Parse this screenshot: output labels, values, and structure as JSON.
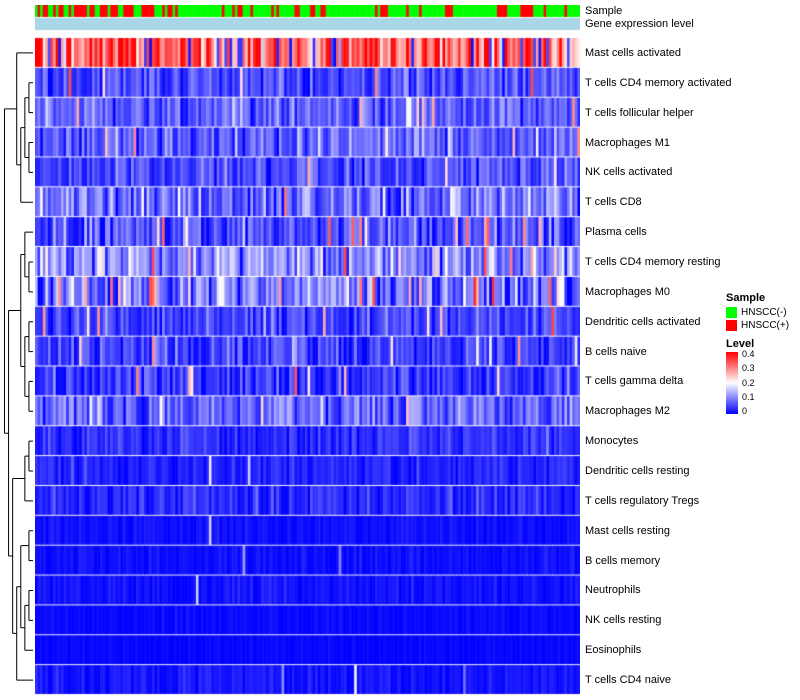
{
  "annotation": {
    "sample_label": "Sample",
    "gene_label": "Gene expression level"
  },
  "legend": {
    "sample_title": "Sample",
    "sample_items": [
      {
        "label": "HNSCC(-)",
        "color": "#00FF00"
      },
      {
        "label": "HNSCC(+)",
        "color": "#FF0000"
      }
    ],
    "level_title": "Level",
    "level_ticks": [
      "0.4",
      "0.3",
      "0.2",
      "0.1",
      "0"
    ]
  },
  "chart_data": {
    "type": "heatmap",
    "title": "",
    "n_samples": 210,
    "value_range": [
      0,
      0.4
    ],
    "seed": 42,
    "colormap": {
      "low": "#0000FF",
      "mid": "#FFFFFF",
      "high": "#FF0000"
    },
    "gene_bar_color": "#A9D7E8",
    "sample_annotation": {
      "colors": {
        "HNSCC(-)": "#00FF00",
        "HNSCC(+)": "#FF0000"
      },
      "red_segments": [
        {
          "frac": 0.25,
          "p_red": 0.45
        },
        {
          "frac": 1.0,
          "p_red": 0.2
        }
      ]
    },
    "rows": [
      {
        "name": "Mast cells activated",
        "mean": 0.33,
        "sd": 0.07,
        "spike_prob": 0.12,
        "spike_lo": 0.0,
        "spike_hi": 0.06
      },
      {
        "name": "T cells CD4 memory activated",
        "mean": 0.055,
        "sd": 0.03,
        "spike_prob": 0.04,
        "spike_lo": 0.2,
        "spike_hi": 0.38
      },
      {
        "name": "T cells follicular helper",
        "mean": 0.07,
        "sd": 0.035,
        "spike_prob": 0.03,
        "spike_lo": 0.18,
        "spike_hi": 0.3
      },
      {
        "name": "Macrophages M1",
        "mean": 0.075,
        "sd": 0.04,
        "spike_prob": 0.03,
        "spike_lo": 0.2,
        "spike_hi": 0.35
      },
      {
        "name": "NK cells activated",
        "mean": 0.06,
        "sd": 0.03,
        "spike_prob": 0.02,
        "spike_lo": 0.18,
        "spike_hi": 0.3
      },
      {
        "name": "T cells CD8",
        "mean": 0.09,
        "sd": 0.05,
        "spike_prob": 0.02,
        "spike_lo": 0.2,
        "spike_hi": 0.33
      },
      {
        "name": "Plasma cells",
        "mean": 0.06,
        "sd": 0.04,
        "spike_prob": 0.04,
        "spike_lo": 0.2,
        "spike_hi": 0.35
      },
      {
        "name": "T cells CD4 memory resting",
        "mean": 0.11,
        "sd": 0.05,
        "spike_prob": 0.03,
        "spike_lo": 0.22,
        "spike_hi": 0.36
      },
      {
        "name": "Macrophages M0",
        "mean": 0.1,
        "sd": 0.06,
        "spike_prob": 0.05,
        "spike_lo": 0.22,
        "spike_hi": 0.38
      },
      {
        "name": "Dendritic cells activated",
        "mean": 0.05,
        "sd": 0.03,
        "spike_prob": 0.03,
        "spike_lo": 0.2,
        "spike_hi": 0.35
      },
      {
        "name": "B cells naive",
        "mean": 0.05,
        "sd": 0.035,
        "spike_prob": 0.02,
        "spike_lo": 0.18,
        "spike_hi": 0.3
      },
      {
        "name": "T cells gamma delta",
        "mean": 0.04,
        "sd": 0.03,
        "spike_prob": 0.02,
        "spike_lo": 0.2,
        "spike_hi": 0.34
      },
      {
        "name": "Macrophages M2",
        "mean": 0.08,
        "sd": 0.04,
        "spike_prob": 0.01,
        "spike_lo": 0.18,
        "spike_hi": 0.28
      },
      {
        "name": "Monocytes",
        "mean": 0.035,
        "sd": 0.02,
        "spike_prob": 0.01,
        "spike_lo": 0.12,
        "spike_hi": 0.22
      },
      {
        "name": "Dendritic cells resting",
        "mean": 0.025,
        "sd": 0.015,
        "spike_prob": 0.01,
        "spike_lo": 0.1,
        "spike_hi": 0.2
      },
      {
        "name": "T cells regulatory Tregs",
        "mean": 0.03,
        "sd": 0.02,
        "spike_prob": 0.005,
        "spike_lo": 0.1,
        "spike_hi": 0.2
      },
      {
        "name": "Mast cells resting",
        "mean": 0.01,
        "sd": 0.008,
        "spike_prob": 0.01,
        "spike_lo": 0.08,
        "spike_hi": 0.2
      },
      {
        "name": "B cells memory",
        "mean": 0.01,
        "sd": 0.008,
        "spike_prob": 0.006,
        "spike_lo": 0.08,
        "spike_hi": 0.18
      },
      {
        "name": "Neutrophils",
        "mean": 0.012,
        "sd": 0.01,
        "spike_prob": 0.012,
        "spike_lo": 0.08,
        "spike_hi": 0.2
      },
      {
        "name": "NK cells resting",
        "mean": 0.006,
        "sd": 0.005,
        "spike_prob": 0.005,
        "spike_lo": 0.06,
        "spike_hi": 0.15
      },
      {
        "name": "Eosinophils",
        "mean": 0.004,
        "sd": 0.004,
        "spike_prob": 0.004,
        "spike_lo": 0.05,
        "spike_hi": 0.12
      },
      {
        "name": "T cells CD4 naive",
        "mean": 0.015,
        "sd": 0.012,
        "spike_prob": 0.015,
        "spike_lo": 0.08,
        "spike_hi": 0.2
      }
    ],
    "dendrogram": [
      [
        0,
        [
          [
            [
              1,
              2
            ],
            [
              3,
              4
            ]
          ],
          5
        ]
      ],
      [
        [
          [
            6,
            [
              7,
              8
            ]
          ],
          [
            [
              9,
              10
            ],
            [
              11,
              12
            ]
          ]
        ],
        [
          [
            [
              13,
              14
            ],
            15
          ],
          [
            [
              [
                16,
                17
              ],
              [
                [
                  18,
                  19
                ],
                20
              ]
            ],
            21
          ]
        ]
      ]
    ]
  }
}
